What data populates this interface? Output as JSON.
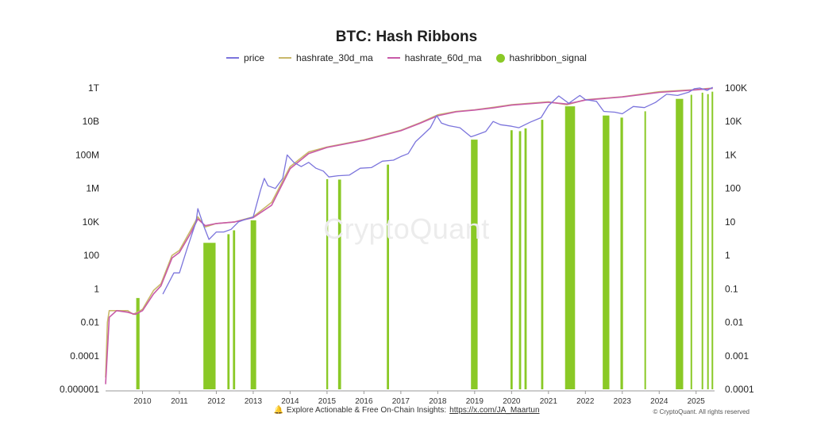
{
  "chart_data": {
    "type": "line",
    "title": "BTC: Hash Ribbons",
    "x_ticks": [
      "2010",
      "2011",
      "2012",
      "2013",
      "2014",
      "2015",
      "2016",
      "2017",
      "2018",
      "2019",
      "2020",
      "2021",
      "2022",
      "2023",
      "2024",
      "2025"
    ],
    "x_range": [
      "2009-01",
      "2025-07"
    ],
    "y_left": {
      "scale": "log",
      "ticks": [
        "0.000001",
        "0.0001",
        "0.01",
        "1",
        "100",
        "10K",
        "1M",
        "100M",
        "10B",
        "1T"
      ],
      "range": [
        1e-06,
        1000000000000
      ]
    },
    "y_right": {
      "scale": "log",
      "ticks": [
        "0.0001",
        "0.001",
        "0.01",
        "0.1",
        "1",
        "10",
        "100",
        "1K",
        "10K",
        "100K"
      ],
      "range": [
        0.0001,
        100000
      ]
    },
    "grid": false,
    "legend_position": "top-center",
    "colors": {
      "price": "#7b74dc",
      "hashrate_30d_ma": "#c9b86a",
      "hashrate_60d_ma": "#c85aa8",
      "hashribbon_signal": "#8ac926"
    },
    "series": [
      {
        "name": "price",
        "axis": "right",
        "x": [
          2010.55,
          2010.85,
          2011.0,
          2011.2,
          2011.45,
          2011.5,
          2011.65,
          2011.8,
          2012.0,
          2012.2,
          2012.4,
          2012.6,
          2012.8,
          2013.0,
          2013.2,
          2013.3,
          2013.4,
          2013.6,
          2013.8,
          2013.92,
          2014.1,
          2014.3,
          2014.5,
          2014.7,
          2014.9,
          2015.05,
          2015.3,
          2015.6,
          2015.9,
          2016.2,
          2016.5,
          2016.8,
          2017.0,
          2017.2,
          2017.4,
          2017.6,
          2017.8,
          2017.97,
          2018.1,
          2018.3,
          2018.6,
          2018.9,
          2019.0,
          2019.3,
          2019.5,
          2019.7,
          2020.0,
          2020.2,
          2020.5,
          2020.8,
          2021.0,
          2021.28,
          2021.55,
          2021.85,
          2022.0,
          2022.3,
          2022.5,
          2022.8,
          2023.0,
          2023.3,
          2023.6,
          2023.9,
          2024.2,
          2024.5,
          2024.8,
          2024.95,
          2025.1,
          2025.3,
          2025.45
        ],
        "y": [
          0.07,
          0.3,
          0.3,
          1.5,
          10,
          25,
          8,
          3,
          5,
          5,
          6,
          10,
          12,
          14,
          90,
          200,
          120,
          100,
          200,
          1000,
          600,
          450,
          600,
          400,
          330,
          220,
          240,
          250,
          400,
          420,
          650,
          700,
          900,
          1100,
          2500,
          4000,
          6500,
          15000,
          9000,
          7500,
          6500,
          3500,
          3800,
          5000,
          10000,
          8000,
          7200,
          6500,
          9500,
          13000,
          30000,
          58000,
          35000,
          60000,
          45000,
          40000,
          20000,
          19000,
          17000,
          28000,
          26000,
          37000,
          65000,
          60000,
          75000,
          95000,
          100000,
          85000,
          105000
        ]
      },
      {
        "name": "hashrate_30d_ma",
        "axis": "left",
        "x": [
          2009.0,
          2009.05,
          2009.1,
          2009.3,
          2009.6,
          2009.75,
          2010.0,
          2010.3,
          2010.5,
          2010.8,
          2011.0,
          2011.3,
          2011.5,
          2011.7,
          2012.0,
          2012.5,
          2013.0,
          2013.5,
          2014.0,
          2014.5,
          2015.0,
          2016.0,
          2017.0,
          2017.5,
          2018.0,
          2018.5,
          2019.0,
          2019.5,
          2020.0,
          2021.0,
          2021.5,
          2022.0,
          2023.0,
          2024.0,
          2025.0,
          2025.45
        ],
        "y": [
          5e-06,
          0.01,
          0.05,
          0.05,
          0.05,
          0.03,
          0.06,
          0.8,
          2,
          100,
          200,
          3000,
          20000,
          5000,
          8000,
          10000,
          20000,
          150000,
          20000000,
          150000000,
          300000000,
          800000000,
          3000000000,
          8000000000,
          25000000000,
          40000000000,
          50000000000,
          70000000000,
          100000000000,
          150000000000,
          100000000000,
          200000000000,
          300000000000,
          600000000000,
          800000000000,
          1000000000000
        ]
      },
      {
        "name": "hashrate_60d_ma",
        "axis": "left",
        "x": [
          2009.0,
          2009.1,
          2009.3,
          2009.6,
          2009.8,
          2010.0,
          2010.3,
          2010.5,
          2010.8,
          2011.0,
          2011.3,
          2011.5,
          2011.7,
          2012.0,
          2012.5,
          2013.0,
          2013.5,
          2014.0,
          2014.5,
          2015.0,
          2016.0,
          2017.0,
          2017.5,
          2018.0,
          2018.5,
          2019.0,
          2019.5,
          2020.0,
          2021.0,
          2021.5,
          2022.0,
          2023.0,
          2024.0,
          2025.0,
          2025.45
        ],
        "y": [
          2e-06,
          0.02,
          0.05,
          0.04,
          0.03,
          0.05,
          0.5,
          1.5,
          70,
          150,
          2000,
          15000,
          6000,
          8000,
          10000,
          18000,
          100000,
          15000000,
          120000000,
          280000000,
          750000000,
          2800000000,
          7500000000,
          22000000000,
          38000000000,
          48000000000,
          65000000000,
          95000000000,
          140000000000,
          110000000000,
          190000000000,
          290000000000,
          550000000000,
          780000000000,
          950000000000
        ]
      }
    ],
    "hashribbon_signal": {
      "description": "vertical buy-signal bars spanning from the x-axis up to the price line",
      "ranges": [
        [
          2009.83,
          2009.92
        ],
        [
          2011.65,
          2011.98
        ],
        [
          2012.3,
          2012.36
        ],
        [
          2012.45,
          2012.51
        ],
        [
          2012.93,
          2013.08
        ],
        [
          2014.98,
          2015.03
        ],
        [
          2015.3,
          2015.38
        ],
        [
          2016.62,
          2016.68
        ],
        [
          2018.9,
          2019.08
        ],
        [
          2019.97,
          2020.03
        ],
        [
          2020.2,
          2020.26
        ],
        [
          2020.35,
          2020.41
        ],
        [
          2020.8,
          2020.86
        ],
        [
          2021.45,
          2021.72
        ],
        [
          2022.47,
          2022.65
        ],
        [
          2022.95,
          2023.02
        ],
        [
          2023.6,
          2023.63
        ],
        [
          2024.45,
          2024.65
        ],
        [
          2024.85,
          2024.87
        ],
        [
          2025.15,
          2025.17
        ],
        [
          2025.3,
          2025.32
        ],
        [
          2025.42,
          2025.44
        ]
      ]
    }
  },
  "title": "BTC: Hash Ribbons",
  "legend": [
    {
      "label": "price",
      "kind": "line",
      "color": "#7b74dc"
    },
    {
      "label": "hashrate_30d_ma",
      "kind": "line",
      "color": "#c9b86a"
    },
    {
      "label": "hashrate_60d_ma",
      "kind": "line",
      "color": "#c85aa8"
    },
    {
      "label": "hashribbon_signal",
      "kind": "dot",
      "color": "#8ac926"
    }
  ],
  "watermark": "CryptoQuant",
  "footer": {
    "icon": "bell-icon",
    "text": "Explore Actionable & Free On-Chain Insights:",
    "link": "https://x.com/JA_Maartun"
  },
  "copyright": "© CryptoQuant. All rights reserved"
}
